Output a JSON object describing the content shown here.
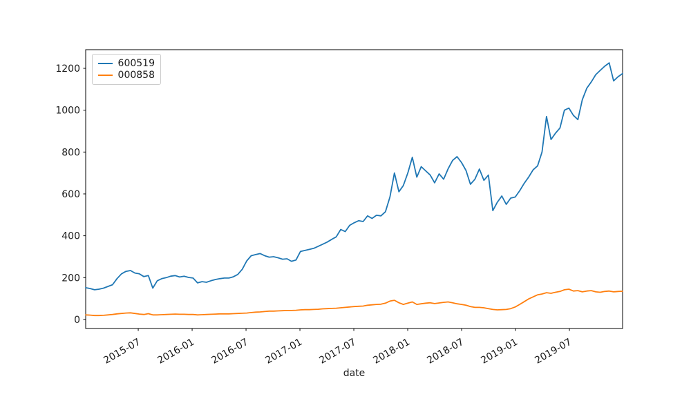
{
  "figure": {
    "background": "#ffffff"
  },
  "chart_data": {
    "type": "line",
    "title": "",
    "xlabel": "date",
    "ylabel": "",
    "grid": false,
    "legend_position": "upper left",
    "x_unit": "months since 2015-01-01",
    "sampling": "semi-monthly estimates, 2015-01 through 2019-12",
    "xlim": [
      0.15,
      59.92
    ],
    "ylim": [
      -43,
      1289
    ],
    "yticks": [
      0,
      200,
      400,
      600,
      800,
      1000,
      1200
    ],
    "xticks": {
      "months": [
        6,
        12,
        18,
        24,
        30,
        36,
        42,
        48,
        54
      ],
      "labels": [
        "2015-07",
        "2016-01",
        "2016-07",
        "2017-01",
        "2017-07",
        "2018-01",
        "2018-07",
        "2019-01",
        "2019-07"
      ],
      "rotation_deg": 30
    },
    "series": [
      {
        "name": "600519",
        "color": "#1f77b4",
        "values": [
          152,
          148,
          142,
          145,
          150,
          158,
          166,
          195,
          218,
          230,
          234,
          222,
          218,
          205,
          210,
          150,
          185,
          195,
          200,
          207,
          210,
          203,
          207,
          201,
          198,
          175,
          181,
          178,
          185,
          191,
          195,
          198,
          198,
          204,
          215,
          240,
          280,
          305,
          310,
          315,
          305,
          298,
          300,
          295,
          288,
          290,
          278,
          284,
          325,
          330,
          335,
          340,
          350,
          360,
          370,
          383,
          395,
          430,
          420,
          450,
          462,
          472,
          468,
          495,
          483,
          498,
          495,
          515,
          585,
          700,
          610,
          640,
          700,
          775,
          680,
          730,
          710,
          690,
          653,
          696,
          670,
          720,
          760,
          778,
          750,
          712,
          646,
          670,
          719,
          665,
          690,
          520,
          560,
          590,
          550,
          580,
          585,
          615,
          650,
          680,
          715,
          734,
          800,
          970,
          860,
          890,
          915,
          1000,
          1010,
          975,
          955,
          1050,
          1105,
          1135,
          1170,
          1190,
          1210,
          1226,
          1140,
          1160,
          1175
        ]
      },
      {
        "name": "000858",
        "color": "#ff7f0e",
        "values": [
          22,
          21,
          19,
          19,
          20,
          22,
          24,
          27,
          29,
          31,
          32,
          29,
          26,
          24,
          28,
          22,
          22,
          23,
          24,
          25,
          26,
          25,
          25,
          24,
          24,
          22,
          23,
          24,
          25,
          26,
          27,
          27,
          27,
          28,
          29,
          30,
          31,
          33,
          35,
          36,
          38,
          40,
          40,
          41,
          42,
          43,
          43,
          44,
          46,
          47,
          47,
          48,
          49,
          51,
          52,
          53,
          54,
          56,
          58,
          60,
          62,
          63,
          64,
          68,
          70,
          72,
          73,
          78,
          88,
          92,
          80,
          72,
          78,
          84,
          72,
          75,
          78,
          80,
          76,
          79,
          82,
          84,
          80,
          75,
          72,
          68,
          62,
          58,
          58,
          56,
          52,
          48,
          46,
          47,
          48,
          52,
          60,
          72,
          85,
          98,
          108,
          118,
          122,
          128,
          125,
          130,
          134,
          142,
          145,
          136,
          138,
          132,
          136,
          138,
          132,
          130,
          134,
          136,
          132,
          134,
          135
        ]
      }
    ]
  }
}
